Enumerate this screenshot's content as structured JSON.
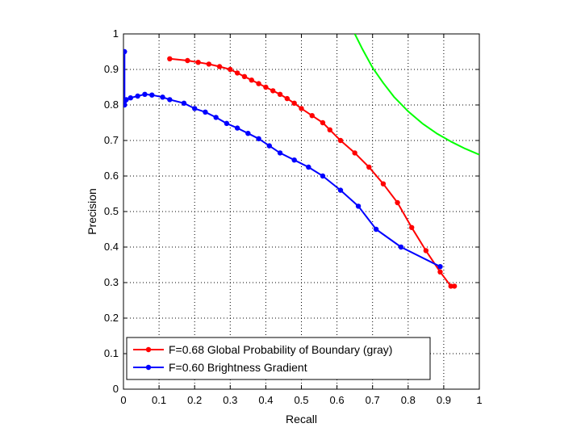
{
  "chart_data": {
    "type": "line",
    "title": "",
    "xlabel": "Recall",
    "ylabel": "Precision",
    "xlim": [
      0,
      1
    ],
    "ylim": [
      0,
      1
    ],
    "grid": true,
    "legend_position": "bottom-left",
    "x_ticks": [
      "0",
      "0.1",
      "0.2",
      "0.3",
      "0.4",
      "0.5",
      "0.6",
      "0.7",
      "0.8",
      "0.9",
      "1"
    ],
    "y_ticks": [
      "0",
      "0.1",
      "0.2",
      "0.3",
      "0.4",
      "0.5",
      "0.6",
      "0.7",
      "0.8",
      "0.9",
      "1"
    ],
    "series": [
      {
        "name": "F=0.68 Global Probability of Boundary (gray)",
        "color": "#ff0000",
        "marker": "dot",
        "x": [
          0.13,
          0.18,
          0.21,
          0.24,
          0.27,
          0.3,
          0.32,
          0.34,
          0.36,
          0.38,
          0.4,
          0.42,
          0.44,
          0.46,
          0.48,
          0.5,
          0.53,
          0.56,
          0.58,
          0.61,
          0.65,
          0.69,
          0.73,
          0.77,
          0.81,
          0.85,
          0.89,
          0.92,
          0.93
        ],
        "y": [
          0.93,
          0.925,
          0.92,
          0.915,
          0.908,
          0.9,
          0.89,
          0.88,
          0.87,
          0.86,
          0.85,
          0.84,
          0.83,
          0.818,
          0.805,
          0.79,
          0.77,
          0.75,
          0.73,
          0.7,
          0.665,
          0.625,
          0.578,
          0.525,
          0.455,
          0.39,
          0.33,
          0.29,
          0.29
        ]
      },
      {
        "name": "F=0.60 Brightness Gradient",
        "color": "#0000ff",
        "marker": "dot",
        "x": [
          0.003,
          0.003,
          0.003,
          0.008,
          0.02,
          0.04,
          0.06,
          0.08,
          0.11,
          0.13,
          0.17,
          0.2,
          0.23,
          0.26,
          0.29,
          0.32,
          0.35,
          0.38,
          0.41,
          0.44,
          0.48,
          0.52,
          0.56,
          0.61,
          0.66,
          0.71,
          0.78,
          0.89
        ],
        "y": [
          0.95,
          0.8,
          0.81,
          0.815,
          0.82,
          0.825,
          0.83,
          0.828,
          0.822,
          0.815,
          0.805,
          0.79,
          0.78,
          0.765,
          0.748,
          0.735,
          0.72,
          0.705,
          0.685,
          0.665,
          0.645,
          0.625,
          0.6,
          0.56,
          0.515,
          0.45,
          0.4,
          0.345
        ]
      },
      {
        "name": "",
        "color": "#00ff00",
        "marker": "none",
        "x": [
          0.65,
          0.67,
          0.7,
          0.73,
          0.76,
          0.8,
          0.84,
          0.88,
          0.92,
          0.96,
          1.0
        ],
        "y": [
          1.0,
          0.96,
          0.905,
          0.862,
          0.823,
          0.782,
          0.748,
          0.72,
          0.697,
          0.677,
          0.66
        ]
      }
    ]
  }
}
